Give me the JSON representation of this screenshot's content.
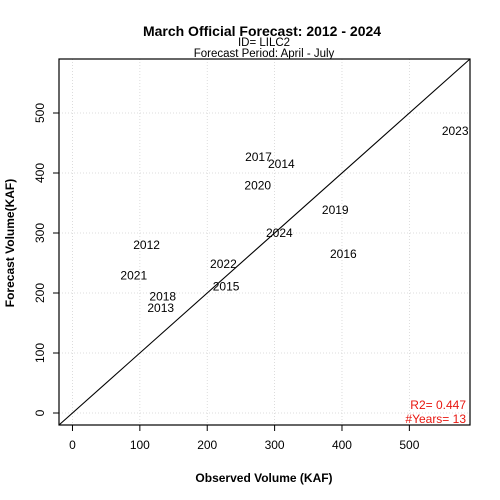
{
  "chart_data": {
    "type": "scatter",
    "title": "March Official Forecast: 2012 - 2024",
    "subtitle_lines": [
      "ID= LILC2",
      "Forecast Period:  April - July"
    ],
    "xlabel": "Observed Volume (KAF)",
    "ylabel": "Forecast Volume(KAF)",
    "xlim": [
      -20,
      590
    ],
    "ylim": [
      -20,
      590
    ],
    "xticks": [
      0,
      100,
      200,
      300,
      400,
      500
    ],
    "yticks": [
      0,
      100,
      200,
      300,
      400,
      500
    ],
    "grid": true,
    "reference_line": "1:1",
    "point_marker": "year label",
    "points": [
      {
        "label": "2012",
        "x": 110,
        "y": 280
      },
      {
        "label": "2013",
        "x": 131,
        "y": 175
      },
      {
        "label": "2014",
        "x": 310,
        "y": 415
      },
      {
        "label": "2015",
        "x": 228,
        "y": 211
      },
      {
        "label": "2016",
        "x": 402,
        "y": 265
      },
      {
        "label": "2017",
        "x": 276,
        "y": 427
      },
      {
        "label": "2018",
        "x": 134,
        "y": 194
      },
      {
        "label": "2019",
        "x": 390,
        "y": 338
      },
      {
        "label": "2020",
        "x": 275,
        "y": 379
      },
      {
        "label": "2021",
        "x": 91,
        "y": 229
      },
      {
        "label": "2022",
        "x": 224,
        "y": 248
      },
      {
        "label": "2023",
        "x": 568,
        "y": 470
      },
      {
        "label": "2024",
        "x": 307,
        "y": 300
      }
    ],
    "stats": {
      "r2_text": "R2=  0.447",
      "years_text": "#Years=  13",
      "color": "#e8160f"
    }
  }
}
